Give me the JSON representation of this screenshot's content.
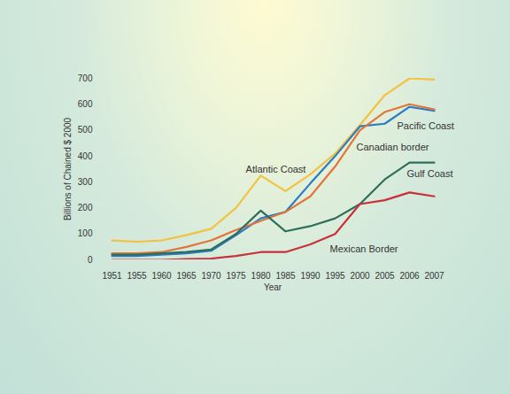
{
  "chart_data": {
    "type": "line",
    "x_label": "Year",
    "y_label": "Billions of Chained $ 2000",
    "categories": [
      "1951",
      "1955",
      "1960",
      "1965",
      "1970",
      "1975",
      "1980",
      "1985",
      "1990",
      "1995",
      "2000",
      "2005",
      "2006",
      "2007"
    ],
    "ylim": [
      0,
      700
    ],
    "yticks": [
      0,
      100,
      200,
      300,
      400,
      500,
      600,
      700
    ],
    "grid": false,
    "series": [
      {
        "name": "Atlantic Coast",
        "color": "#f3c240",
        "values": [
          75,
          70,
          75,
          95,
          120,
          200,
          325,
          265,
          330,
          410,
          520,
          635,
          700,
          695
        ]
      },
      {
        "name": "Pacific Coast",
        "color": "#2c7cc4",
        "values": [
          15,
          15,
          20,
          25,
          35,
          95,
          160,
          185,
          295,
          400,
          515,
          525,
          590,
          575
        ]
      },
      {
        "name": "Canadian border",
        "color": "#e2763a",
        "values": [
          25,
          25,
          30,
          50,
          75,
          115,
          150,
          185,
          245,
          360,
          500,
          570,
          600,
          580
        ]
      },
      {
        "name": "Gulf Coast",
        "color": "#2f6e5a",
        "values": [
          20,
          20,
          25,
          30,
          40,
          100,
          190,
          110,
          130,
          160,
          215,
          310,
          375,
          375
        ]
      },
      {
        "name": "Mexican Border",
        "color": "#c8303a",
        "values": [
          0,
          0,
          0,
          3,
          5,
          15,
          30,
          30,
          60,
          100,
          215,
          230,
          260,
          245
        ]
      }
    ]
  }
}
